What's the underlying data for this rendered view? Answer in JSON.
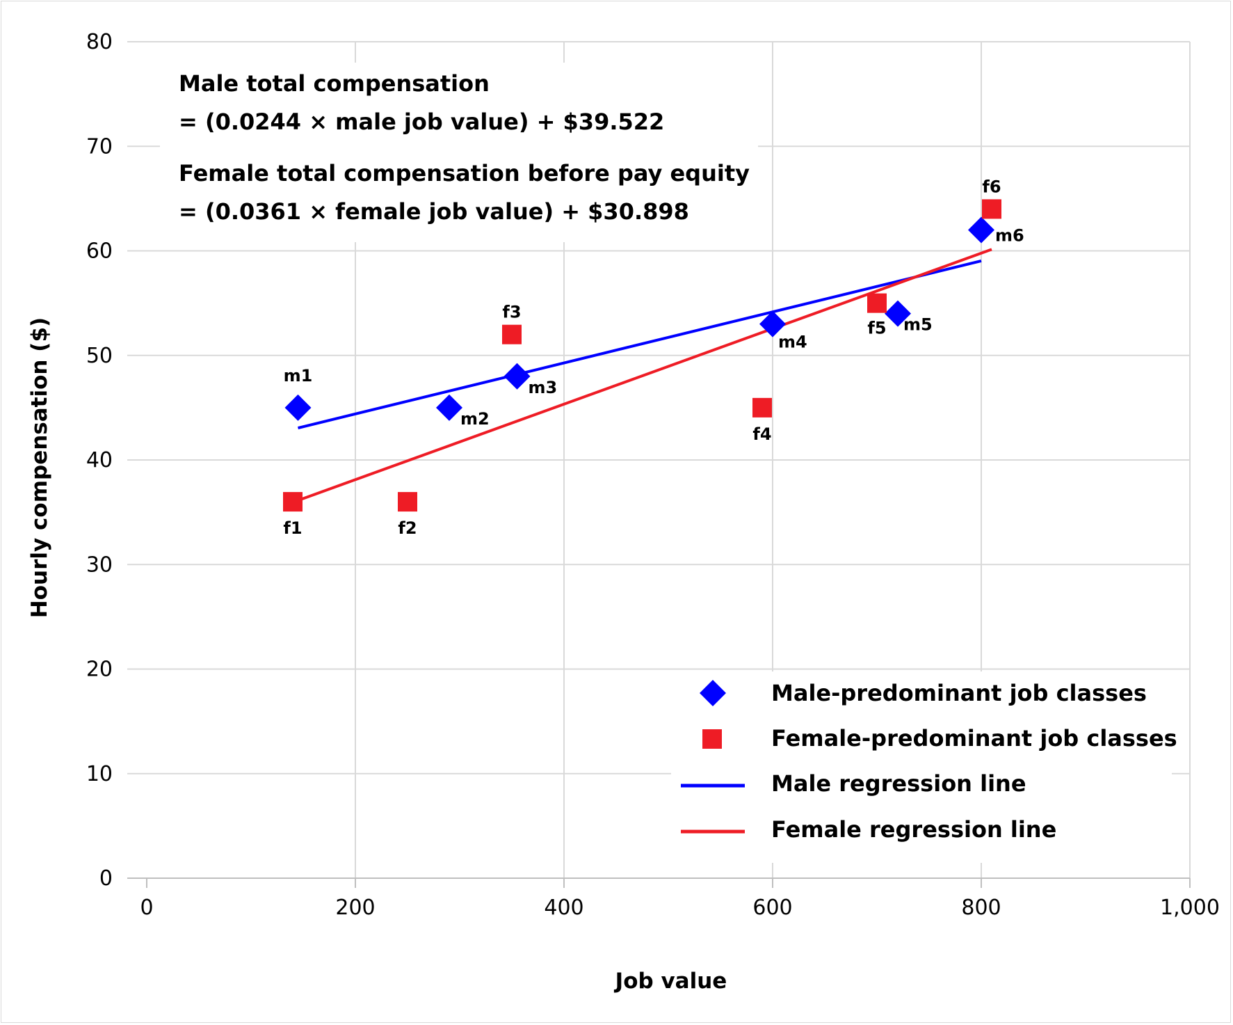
{
  "chart_data": {
    "type": "scatter",
    "xlabel": "Job value",
    "ylabel": "Hourly compensation ($)",
    "xlim": [
      0,
      1000
    ],
    "ylim": [
      0,
      80
    ],
    "x_ticks": [
      "0",
      "200",
      "400",
      "600",
      "800",
      "1,000"
    ],
    "y_ticks": [
      "0",
      "10",
      "20",
      "30",
      "40",
      "50",
      "60",
      "70",
      "80"
    ],
    "grid": true,
    "legend_position": "bottom-right",
    "annotations": [
      "Male total compensation",
      "= (0.0244 × male job value) + $39.522",
      "Female total compensation before pay equity",
      "= (0.0361 × female job value) + $30.898"
    ],
    "legend": [
      "Male-predominant job classes",
      "Female-predominant job classes",
      "Male regression line",
      "Female regression line"
    ],
    "series": [
      {
        "name": "Male-predominant job classes",
        "marker": "diamond",
        "color": "#0000ff",
        "points": [
          {
            "label": "m1",
            "x": 145,
            "y": 45
          },
          {
            "label": "m2",
            "x": 290,
            "y": 45
          },
          {
            "label": "m3",
            "x": 355,
            "y": 48
          },
          {
            "label": "m4",
            "x": 600,
            "y": 53
          },
          {
            "label": "m5",
            "x": 720,
            "y": 54
          },
          {
            "label": "m6",
            "x": 800,
            "y": 62
          }
        ]
      },
      {
        "name": "Female-predominant job classes",
        "marker": "square",
        "color": "#ee1c25",
        "points": [
          {
            "label": "f1",
            "x": 140,
            "y": 36
          },
          {
            "label": "f2",
            "x": 250,
            "y": 36
          },
          {
            "label": "f3",
            "x": 350,
            "y": 52
          },
          {
            "label": "f4",
            "x": 590,
            "y": 45
          },
          {
            "label": "f5",
            "x": 700,
            "y": 55
          },
          {
            "label": "f6",
            "x": 810,
            "y": 64
          }
        ]
      }
    ],
    "lines": [
      {
        "name": "Male regression line",
        "color": "#0000ff",
        "x": [
          145,
          800
        ],
        "y": [
          43.06,
          59.04
        ]
      },
      {
        "name": "Female regression line",
        "color": "#ee1c25",
        "x": [
          140,
          810
        ],
        "y": [
          35.95,
          60.14
        ]
      }
    ]
  }
}
